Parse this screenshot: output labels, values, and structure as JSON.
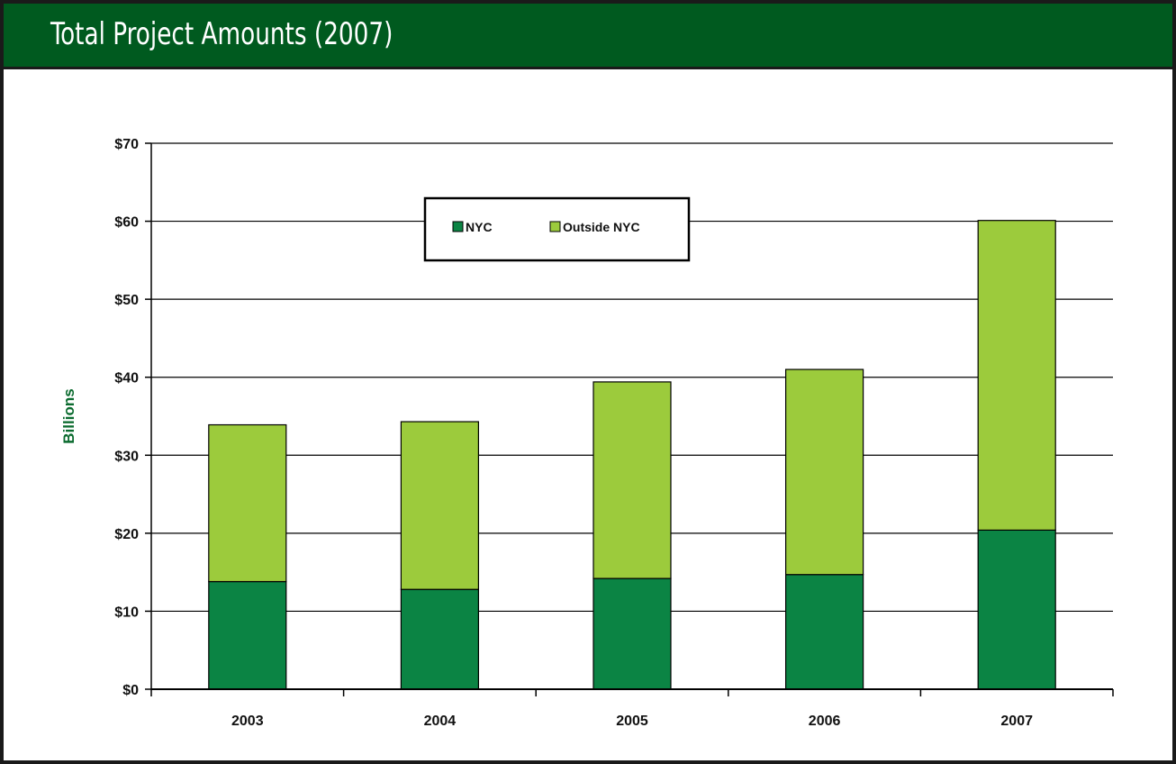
{
  "header": {
    "title": "Total Project Amounts (2007)"
  },
  "colors": {
    "title_bg": "#005a1f",
    "nyc": "#0b8444",
    "outside_nyc": "#9ccb3c",
    "axis_title": "#0b6b2f"
  },
  "chart_data": {
    "type": "bar",
    "stacked": true,
    "categories": [
      "2003",
      "2004",
      "2005",
      "2006",
      "2007"
    ],
    "series": [
      {
        "name": "NYC",
        "values": [
          13.8,
          12.8,
          14.2,
          14.7,
          20.4
        ]
      },
      {
        "name": "Outside NYC",
        "values": [
          20.1,
          21.5,
          25.2,
          26.3,
          39.7
        ]
      }
    ],
    "ylabel": "Billions",
    "ylim": [
      0,
      70
    ],
    "yticks": [
      0,
      10,
      20,
      30,
      40,
      50,
      60,
      70
    ],
    "ytick_labels": [
      "$0",
      "$10",
      "$20",
      "$30",
      "$40",
      "$50",
      "$60",
      "$70"
    ],
    "grid": true,
    "legend_position": "top-center"
  }
}
